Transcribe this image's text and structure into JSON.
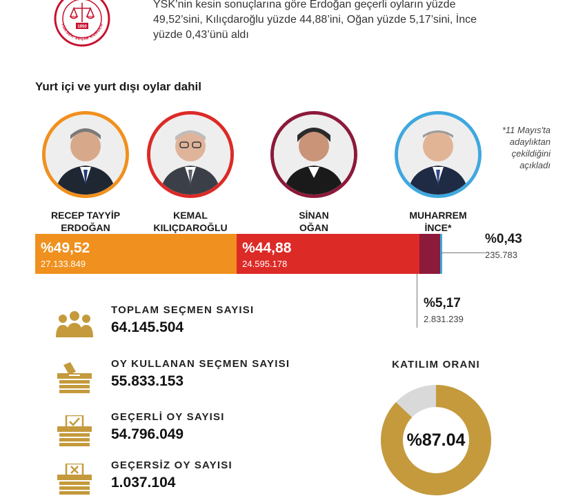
{
  "logo": {
    "year": "1950",
    "ring_text": "YÜKSEK SEÇİM KURULU",
    "color": "#c8102e"
  },
  "intro": {
    "text": "YSK’nin kesin sonuçlarına göre Erdoğan geçerli oyların yüzde 49,52’sini, Kılıçdaroğlu yüzde 44,88’ini, Oğan yüzde 5,17’sini, İnce yüzde 0,43’ünü aldı"
  },
  "subtitle": "Yurt içi ve yurt dışı oylar dahil",
  "candidates": [
    {
      "name_line1": "RECEP TAYYİP",
      "name_line2": "ERDOĞAN",
      "color": "#f0901e",
      "pct": "%49,52",
      "votes": "27.133.849",
      "share": 49.52
    },
    {
      "name_line1": "KEMAL",
      "name_line2": "KILIÇDAROĞLU",
      "color": "#dc2a27",
      "pct": "%44,88",
      "votes": "24.595.178",
      "share": 44.88
    },
    {
      "name_line1": "SİNAN",
      "name_line2": "OĞAN",
      "color": "#8c1a3a",
      "pct": "%5,17",
      "votes": "2.831.239",
      "share": 5.17
    },
    {
      "name_line1": "MUHARREM",
      "name_line2": "İNCE*",
      "color": "#3fa8de",
      "pct": "%0,43",
      "votes": "235.783",
      "share": 0.43
    }
  ],
  "note": "*11 Mayıs'ta adaylıktan çekildiğini açıkladı",
  "stats": [
    {
      "label": "TOPLAM SEÇMEN SAYISI",
      "value": "64.145.504",
      "icon": "people-icon"
    },
    {
      "label": "OY KULLANAN SEÇMEN SAYISI",
      "value": "55.833.153",
      "icon": "ballot-box-icon"
    },
    {
      "label": "GEÇERLİ OY SAYISI",
      "value": "54.796.049",
      "icon": "ballot-box-check-icon"
    },
    {
      "label": "GEÇERSİZ OY SAYISI",
      "value": "1.037.104",
      "icon": "ballot-box-x-icon"
    }
  ],
  "turnout": {
    "title": "KATILIM ORANI",
    "label": "%87.04",
    "value": 87.04,
    "fill_color": "#c49a3c",
    "rest_color": "#d9d9d9"
  },
  "colors": {
    "icon": "#c49a3c",
    "text": "#1a1a1a"
  }
}
